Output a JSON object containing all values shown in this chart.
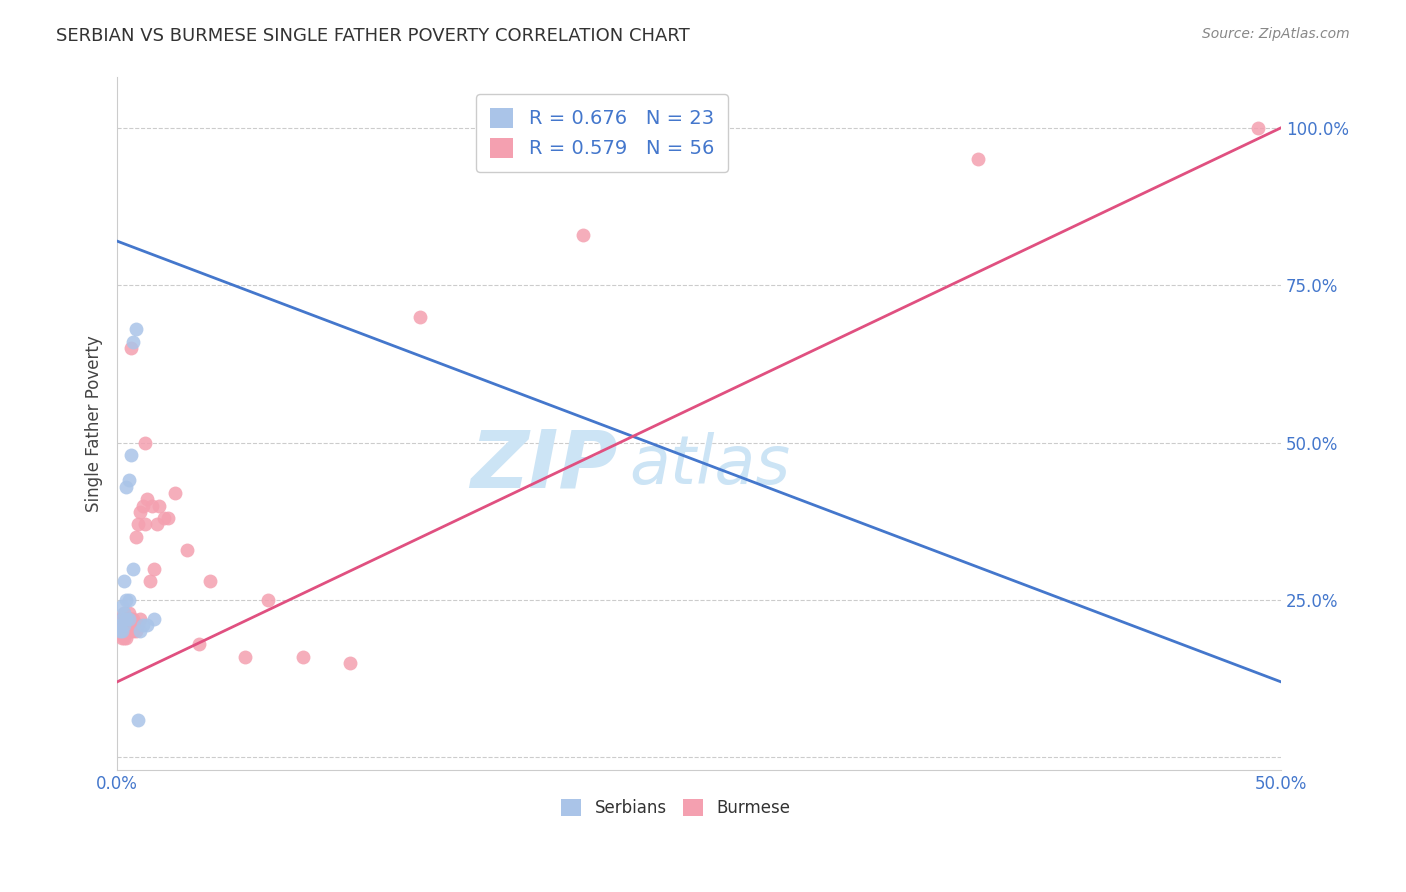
{
  "title": "SERBIAN VS BURMESE SINGLE FATHER POVERTY CORRELATION CHART",
  "source": "Source: ZipAtlas.com",
  "ylabel": "Single Father Poverty",
  "xlim": [
    0.0,
    0.5
  ],
  "ylim": [
    -0.02,
    1.08
  ],
  "ytick_positions": [
    0.0,
    0.25,
    0.5,
    0.75,
    1.0
  ],
  "ytick_labels": [
    "",
    "25.0%",
    "50.0%",
    "75.0%",
    "100.0%"
  ],
  "grid_color": "#cccccc",
  "background_color": "#ffffff",
  "watermark_color": "#cce4f5",
  "serbian_color": "#aac4e8",
  "burmese_color": "#f4a0b0",
  "serbian_line_color": "#4477cc",
  "burmese_line_color": "#e05080",
  "serbian_R": 0.676,
  "serbian_N": 23,
  "burmese_R": 0.579,
  "burmese_N": 56,
  "legend_label_serbian": "Serbians",
  "legend_label_burmese": "Burmese",
  "serbian_x": [
    0.001,
    0.001,
    0.002,
    0.002,
    0.002,
    0.003,
    0.003,
    0.003,
    0.004,
    0.004,
    0.004,
    0.005,
    0.005,
    0.005,
    0.006,
    0.007,
    0.007,
    0.008,
    0.009,
    0.01,
    0.011,
    0.013,
    0.016
  ],
  "serbian_y": [
    0.2,
    0.21,
    0.2,
    0.22,
    0.24,
    0.21,
    0.23,
    0.28,
    0.22,
    0.25,
    0.43,
    0.22,
    0.25,
    0.44,
    0.48,
    0.3,
    0.66,
    0.68,
    0.06,
    0.2,
    0.21,
    0.21,
    0.22
  ],
  "burmese_x": [
    0.001,
    0.001,
    0.001,
    0.002,
    0.002,
    0.002,
    0.002,
    0.003,
    0.003,
    0.003,
    0.003,
    0.003,
    0.004,
    0.004,
    0.004,
    0.004,
    0.005,
    0.005,
    0.005,
    0.005,
    0.006,
    0.006,
    0.006,
    0.006,
    0.007,
    0.007,
    0.007,
    0.008,
    0.008,
    0.009,
    0.009,
    0.01,
    0.01,
    0.011,
    0.012,
    0.012,
    0.013,
    0.014,
    0.015,
    0.016,
    0.017,
    0.018,
    0.02,
    0.022,
    0.025,
    0.03,
    0.035,
    0.04,
    0.055,
    0.065,
    0.08,
    0.1,
    0.13,
    0.2,
    0.37,
    0.49
  ],
  "burmese_y": [
    0.2,
    0.21,
    0.22,
    0.19,
    0.2,
    0.21,
    0.22,
    0.19,
    0.2,
    0.21,
    0.22,
    0.23,
    0.19,
    0.2,
    0.21,
    0.22,
    0.2,
    0.21,
    0.22,
    0.23,
    0.2,
    0.21,
    0.22,
    0.65,
    0.2,
    0.21,
    0.22,
    0.2,
    0.35,
    0.21,
    0.37,
    0.22,
    0.39,
    0.4,
    0.37,
    0.5,
    0.41,
    0.28,
    0.4,
    0.3,
    0.37,
    0.4,
    0.38,
    0.38,
    0.42,
    0.33,
    0.18,
    0.28,
    0.16,
    0.25,
    0.16,
    0.15,
    0.7,
    0.83,
    0.95,
    1.0
  ],
  "serbian_line_x": [
    0.0,
    0.5
  ],
  "serbian_line_y": [
    0.82,
    0.12
  ],
  "burmese_line_x": [
    0.0,
    0.5
  ],
  "burmese_line_y": [
    0.12,
    1.0
  ]
}
